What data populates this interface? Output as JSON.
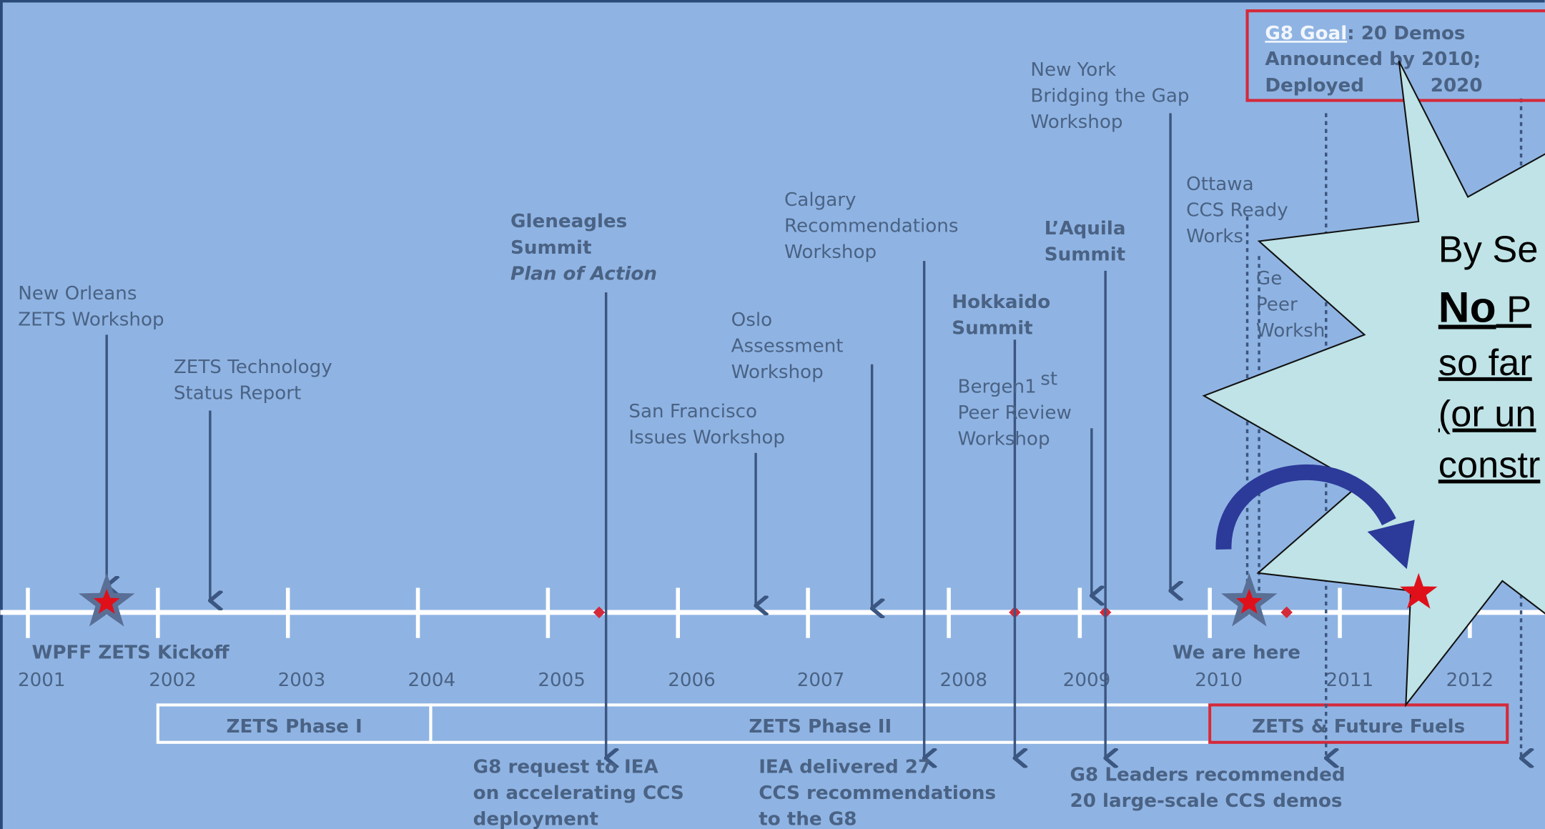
{
  "timeline": {
    "years": [
      "2001",
      "2002",
      "2003",
      "2004",
      "2005",
      "2006",
      "2007",
      "2008",
      "2009",
      "2010",
      "2011",
      "2012"
    ],
    "phases": [
      "ZETS Phase I",
      "ZETS Phase II",
      "ZETS & Future Fuels"
    ],
    "kickoff": "WPFF ZETS Kickoff",
    "here": "We are here"
  },
  "events": [
    {
      "lines": [
        "New Orleans",
        "ZETS Workshop"
      ]
    },
    {
      "lines": [
        "ZETS  Technology",
        "Status Report"
      ]
    },
    {
      "lines": [
        "Gleneagles",
        "Summit",
        "Plan of Action"
      ]
    },
    {
      "lines": [
        "San Francisco",
        "Issues Workshop"
      ]
    },
    {
      "lines": [
        "Oslo",
        "Assessment",
        "Workshop"
      ]
    },
    {
      "lines": [
        "Calgary",
        "Recommendations",
        "Workshop"
      ]
    },
    {
      "lines": [
        "Hokkaido",
        "Summit"
      ]
    },
    {
      "lines": [
        "Bergen1",
        "Peer Review",
        "Workshop"
      ],
      "superscript": "st"
    },
    {
      "lines": [
        "L’Aquila",
        "Summit"
      ]
    },
    {
      "lines": [
        "New York",
        "Bridging the Gap",
        "Workshop"
      ]
    },
    {
      "lines": [
        "Ottawa",
        "CCS Ready",
        "Works"
      ]
    },
    {
      "lines": [
        "Ge",
        "Peer",
        "Worksh"
      ]
    }
  ],
  "notes": [
    {
      "lines": [
        "G8 request to IEA",
        "on accelerating CCS",
        "deployment"
      ]
    },
    {
      "lines": [
        "IEA delivered 27",
        "CCS recommendations",
        "to the  G8"
      ]
    },
    {
      "lines": [
        "G8 Leaders recommended",
        "20 large-scale CCS demos"
      ]
    }
  ],
  "goal": {
    "label": "G8 Goal",
    "line1": ": 20 Demos",
    "line2": "Announced by 2010;",
    "line3a": "Deployed",
    "line3b": "2020"
  },
  "callout": {
    "line1": "By Se",
    "line2a": "No",
    "line2b": " P",
    "line3": "so far",
    "line4": "(or un",
    "line5": "constr"
  }
}
